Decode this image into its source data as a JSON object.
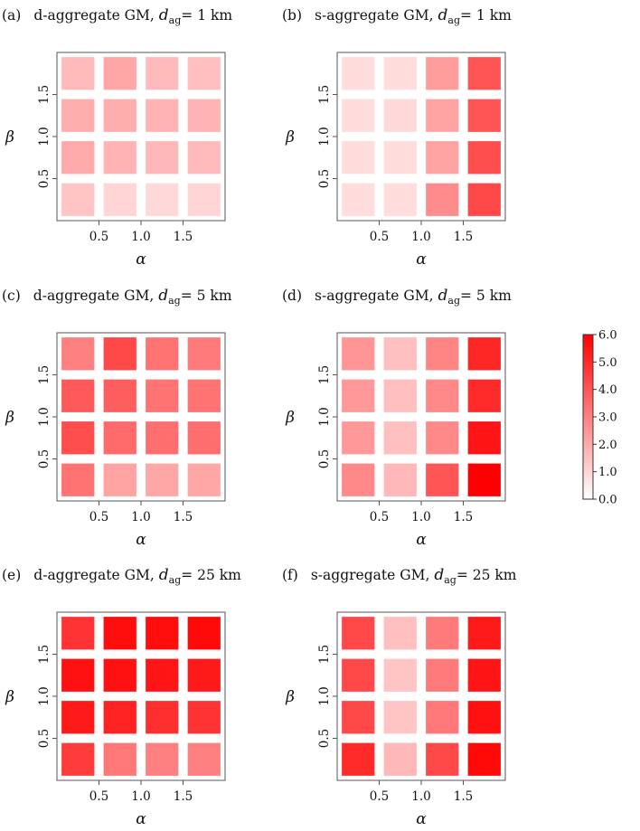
{
  "chart_data": [
    {
      "type": "heatmap",
      "tag": "(a)",
      "title_main": "d-aggregate GM, ",
      "title_var": "d",
      "title_sub": "ag",
      "title_value": "= 1 km",
      "xlabel": "α",
      "ylabel": "β",
      "x": [
        0.25,
        0.75,
        1.25,
        1.75
      ],
      "y": [
        0.25,
        0.75,
        1.25,
        1.75
      ],
      "x_ticks": [
        "0.5",
        "1.0",
        "1.5"
      ],
      "y_ticks": [
        "0.5",
        "1.0",
        "1.5"
      ],
      "values": [
        [
          1.4,
          1.0,
          0.9,
          1.0
        ],
        [
          2.0,
          1.8,
          1.7,
          1.6
        ],
        [
          1.9,
          1.9,
          1.8,
          1.8
        ],
        [
          1.6,
          2.1,
          1.6,
          1.5
        ]
      ]
    },
    {
      "type": "heatmap",
      "tag": "(b)",
      "title_main": "s-aggregate GM, ",
      "title_var": "d",
      "title_sub": "ag",
      "title_value": "= 1 km",
      "xlabel": "α",
      "ylabel": "β",
      "x": [
        0.25,
        0.75,
        1.25,
        1.75
      ],
      "y": [
        0.25,
        0.75,
        1.25,
        1.75
      ],
      "x_ticks": [
        "0.5",
        "1.0",
        "1.5"
      ],
      "y_ticks": [
        "0.5",
        "1.0",
        "1.5"
      ],
      "values": [
        [
          0.8,
          0.8,
          2.7,
          4.3
        ],
        [
          0.8,
          0.8,
          2.2,
          4.2
        ],
        [
          0.8,
          0.9,
          2.2,
          4.0
        ],
        [
          0.8,
          0.8,
          2.3,
          4.0
        ]
      ]
    },
    {
      "type": "heatmap",
      "tag": "(c)",
      "title_main": "d-aggregate GM, ",
      "title_var": "d",
      "title_sub": "ag",
      "title_value": "= 5 km",
      "xlabel": "α",
      "ylabel": "β",
      "x": [
        0.25,
        0.75,
        1.25,
        1.75
      ],
      "y": [
        0.25,
        0.75,
        1.25,
        1.75
      ],
      "x_ticks": [
        "0.5",
        "1.0",
        "1.5"
      ],
      "y_ticks": [
        "0.5",
        "1.0",
        "1.5"
      ],
      "values": [
        [
          3.3,
          2.2,
          2.1,
          2.1
        ],
        [
          4.2,
          3.5,
          3.4,
          3.4
        ],
        [
          3.9,
          3.8,
          3.3,
          3.3
        ],
        [
          3.0,
          4.3,
          3.3,
          3.1
        ]
      ]
    },
    {
      "type": "heatmap",
      "tag": "(d)",
      "title_main": "s-aggregate GM, ",
      "title_var": "d",
      "title_sub": "ag",
      "title_value": "= 5 km",
      "xlabel": "α",
      "ylabel": "β",
      "x": [
        0.25,
        0.75,
        1.25,
        1.75
      ],
      "y": [
        0.25,
        0.75,
        1.25,
        1.75
      ],
      "x_ticks": [
        "0.5",
        "1.0",
        "1.5"
      ],
      "y_ticks": [
        "0.5",
        "1.0",
        "1.5"
      ],
      "values": [
        [
          2.8,
          1.7,
          4.0,
          6.0
        ],
        [
          2.4,
          1.5,
          2.8,
          5.5
        ],
        [
          2.4,
          1.5,
          2.8,
          5.0
        ],
        [
          2.5,
          1.5,
          2.9,
          5.1
        ]
      ]
    },
    {
      "type": "heatmap",
      "tag": "(e)",
      "title_main": "d-aggregate GM, ",
      "title_var": "d",
      "title_sub": "ag",
      "title_value": "= 25 km",
      "xlabel": "α",
      "ylabel": "β",
      "x": [
        0.25,
        0.75,
        1.25,
        1.75
      ],
      "y": [
        0.25,
        0.75,
        1.25,
        1.75
      ],
      "x_ticks": [
        "0.5",
        "1.0",
        "1.5"
      ],
      "y_ticks": [
        "0.5",
        "1.0",
        "1.5"
      ],
      "values": [
        [
          4.6,
          3.2,
          3.0,
          3.0
        ],
        [
          5.4,
          5.2,
          4.9,
          4.8
        ],
        [
          5.6,
          5.6,
          5.5,
          5.4
        ],
        [
          4.8,
          5.7,
          5.7,
          5.8
        ]
      ]
    },
    {
      "type": "heatmap",
      "tag": "(f)",
      "title_main": "s-aggregate GM, ",
      "title_var": "d",
      "title_sub": "ag",
      "title_value": "= 25 km",
      "xlabel": "α",
      "ylabel": "β",
      "x": [
        0.25,
        0.75,
        1.25,
        1.75
      ],
      "y": [
        0.25,
        0.75,
        1.25,
        1.75
      ],
      "x_ticks": [
        "0.5",
        "1.0",
        "1.5"
      ],
      "y_ticks": [
        "0.5",
        "1.0",
        "1.5"
      ],
      "values": [
        [
          5.0,
          1.7,
          4.3,
          5.8
        ],
        [
          4.3,
          1.4,
          3.2,
          5.6
        ],
        [
          4.3,
          1.4,
          3.1,
          5.5
        ],
        [
          4.3,
          1.5,
          3.1,
          5.4
        ]
      ]
    }
  ],
  "colorbar": {
    "min": 0.0,
    "max": 6.0,
    "ticks": [
      "0.0",
      "1.0",
      "2.0",
      "3.0",
      "4.0",
      "5.0",
      "6.0"
    ],
    "color_low": "#ffffff",
    "color_high": "#ff0000"
  }
}
